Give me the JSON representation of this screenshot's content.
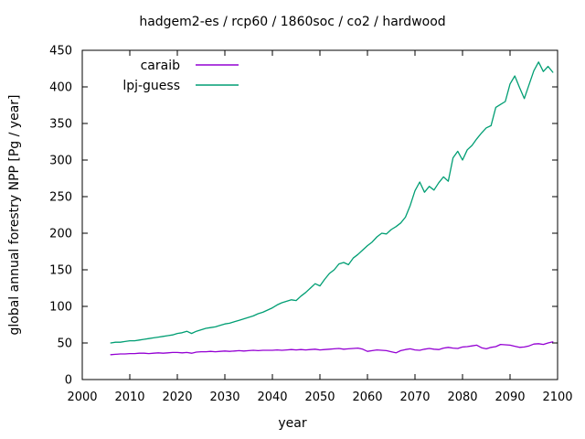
{
  "chart_data": {
    "type": "line",
    "title": "hadgem2-es / rcp60 / 1860soc / co2 / hardwood",
    "xlabel": "year",
    "ylabel": "global annual forestry NPP [Pg / year]",
    "xlim": [
      2000,
      2100
    ],
    "ylim": [
      0,
      450
    ],
    "xticks": [
      2000,
      2010,
      2020,
      2030,
      2040,
      2050,
      2060,
      2070,
      2080,
      2090,
      2100
    ],
    "yticks": [
      0,
      50,
      100,
      150,
      200,
      250,
      300,
      350,
      400,
      450
    ],
    "grid": false,
    "legend_position": "top-left-inside",
    "x_start": 2006,
    "x_step": 1,
    "series": [
      {
        "name": "caraib",
        "color": "#9400d3",
        "values": [
          34,
          34.5,
          35,
          35,
          35.5,
          35.5,
          36,
          36,
          35.5,
          36,
          36.5,
          36,
          36.5,
          37,
          37,
          36.5,
          37,
          36,
          37.5,
          38,
          38,
          38.5,
          38,
          38.5,
          39,
          38.5,
          39,
          39.5,
          39,
          39.5,
          40,
          39.5,
          40,
          40,
          40,
          40.5,
          40,
          40.5,
          41,
          40.5,
          41,
          40.5,
          41,
          41.5,
          40.5,
          41,
          41.5,
          42,
          42.5,
          41.5,
          42,
          42.5,
          43,
          41.5,
          38.5,
          39.5,
          40.5,
          40,
          39.5,
          38,
          36.5,
          39.5,
          41,
          42,
          40.5,
          40,
          41.5,
          42.5,
          41.5,
          41,
          43,
          44,
          43,
          42.5,
          44.5,
          45,
          46,
          47,
          43.5,
          42,
          44,
          45,
          48,
          47.5,
          47,
          45.5,
          44,
          44.5,
          46,
          48.5,
          49,
          48,
          50,
          51.5
        ]
      },
      {
        "name": "lpj-guess",
        "color": "#009e73",
        "values": [
          50,
          51,
          51,
          52,
          53,
          53,
          54,
          55,
          56,
          57,
          58,
          59,
          60,
          61,
          63,
          64,
          66,
          63,
          66,
          68,
          70,
          71,
          72,
          74,
          76,
          77,
          79,
          81,
          83,
          85,
          87,
          90,
          92,
          95,
          98,
          102,
          105,
          107,
          109,
          108,
          114,
          119,
          125,
          131,
          128,
          137,
          145,
          150,
          158,
          160,
          157,
          166,
          171,
          177,
          183,
          188,
          195,
          200,
          199,
          205,
          209,
          214,
          222,
          238,
          258,
          270,
          256,
          264,
          259,
          269,
          277,
          271,
          303,
          312,
          300,
          314,
          320,
          329,
          337,
          344,
          347,
          372,
          376,
          380,
          404,
          415,
          399,
          384,
          403,
          422,
          434,
          421,
          428,
          420
        ]
      }
    ]
  }
}
